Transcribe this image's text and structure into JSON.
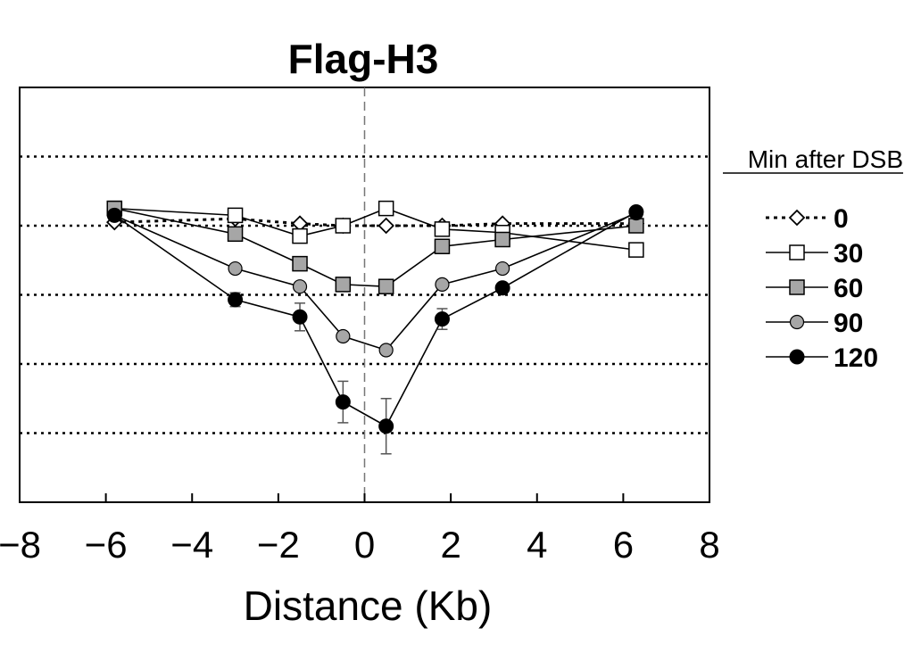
{
  "chart_data": {
    "type": "line",
    "title": "Flag-H3",
    "xlabel": "Distance (Kb)",
    "ylabel": "",
    "xlim": [
      -8,
      8
    ],
    "xticks": [
      -8,
      -6,
      -4,
      -2,
      0,
      2,
      4,
      6,
      8
    ],
    "ylim": [
      0,
      6
    ],
    "y_gridlines": [
      1,
      2,
      3,
      4,
      5
    ],
    "y_tick_labels_shown": false,
    "grid": "horizontal dotted",
    "vertical_reference_line_x": 0,
    "legend": {
      "title": "Min after DSB",
      "placement": "right"
    },
    "x": [
      -5.8,
      -3,
      -1.5,
      -0.5,
      0.5,
      1.8,
      3.2,
      6.3
    ],
    "series": [
      {
        "name": "0",
        "marker": "diamond-open",
        "line": "dashed",
        "values": [
          4.05,
          4.1,
          4.03,
          4.0,
          4.0,
          4.0,
          4.03,
          4.03
        ]
      },
      {
        "name": "30",
        "marker": "square-open",
        "line": "solid",
        "values": [
          4.25,
          4.15,
          3.85,
          4.0,
          4.25,
          3.95,
          3.9,
          3.65
        ]
      },
      {
        "name": "60",
        "marker": "square-gray",
        "line": "solid",
        "values": [
          4.25,
          3.88,
          3.45,
          3.15,
          3.12,
          3.7,
          3.8,
          4.0
        ]
      },
      {
        "name": "90",
        "marker": "circle-gray",
        "line": "solid",
        "values": [
          4.15,
          3.38,
          3.12,
          2.4,
          2.2,
          3.15,
          3.38,
          4.18
        ]
      },
      {
        "name": "120",
        "marker": "circle-black",
        "line": "solid",
        "values": [
          4.15,
          2.93,
          2.68,
          1.45,
          1.1,
          2.65,
          3.1,
          4.2
        ],
        "error": [
          0,
          0.1,
          0.2,
          0.3,
          0.4,
          0.15,
          0.05,
          0
        ]
      }
    ],
    "colors": {
      "gray_fill": "#a6a6a6",
      "black_fill": "#000000",
      "open_fill": "#ffffff"
    }
  }
}
